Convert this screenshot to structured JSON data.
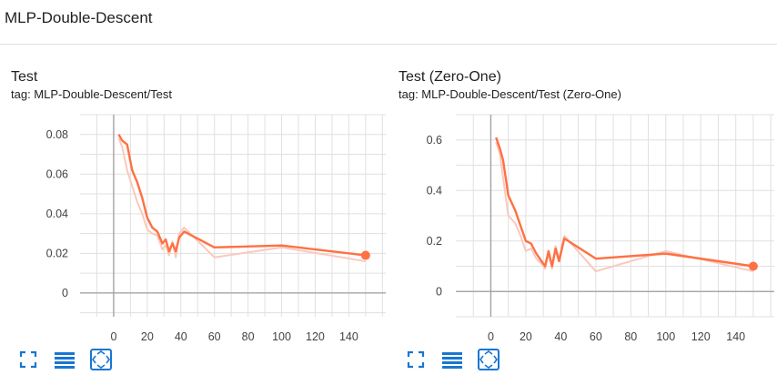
{
  "section": {
    "title": "MLP-Double-Descent"
  },
  "cards": [
    {
      "title": "Test",
      "tag": "tag: MLP-Double-Descent/Test",
      "toolbar": {
        "expand": "expand-icon",
        "data": "data-table-icon",
        "fit": "fit-domain-icon"
      }
    },
    {
      "title": "Test (Zero-One)",
      "tag": "tag: MLP-Double-Descent/Test (Zero-One)",
      "toolbar": {
        "expand": "expand-icon",
        "data": "data-table-icon",
        "fit": "fit-domain-icon"
      }
    }
  ],
  "colors": {
    "line": "#ff7043",
    "raw": "#f9c9bc",
    "grid": "#e0e0e0",
    "axis": "#9e9e9e"
  },
  "chart_data": [
    {
      "type": "line",
      "title": "Test",
      "xlim": [
        -20,
        162
      ],
      "ylim": [
        -0.012,
        0.09
      ],
      "xticks": [
        0,
        20,
        40,
        60,
        80,
        100,
        120,
        140
      ],
      "yticks": [
        0,
        0.02,
        0.04,
        0.06,
        0.08
      ],
      "ytick_labels": [
        "0",
        "0.02",
        "0.04",
        "0.06",
        "0.08"
      ],
      "series": [
        {
          "name": "smoothed",
          "x": [
            3,
            5,
            8,
            11,
            14,
            17,
            20,
            23,
            26,
            29,
            31,
            33,
            35,
            37,
            39,
            42,
            60,
            100,
            150
          ],
          "y": [
            0.08,
            0.077,
            0.075,
            0.062,
            0.056,
            0.048,
            0.038,
            0.033,
            0.031,
            0.025,
            0.027,
            0.021,
            0.025,
            0.021,
            0.028,
            0.031,
            0.023,
            0.024,
            0.019
          ]
        },
        {
          "name": "raw",
          "x": [
            3,
            5,
            8,
            11,
            14,
            17,
            20,
            23,
            26,
            29,
            31,
            33,
            35,
            37,
            39,
            42,
            60,
            100,
            150
          ],
          "y": [
            0.078,
            0.074,
            0.062,
            0.054,
            0.046,
            0.04,
            0.032,
            0.03,
            0.029,
            0.022,
            0.024,
            0.019,
            0.026,
            0.018,
            0.03,
            0.033,
            0.018,
            0.023,
            0.016
          ]
        }
      ],
      "last_point": {
        "x": 150,
        "y": 0.019
      }
    },
    {
      "type": "line",
      "title": "Test (Zero-One)",
      "xlim": [
        -20,
        162
      ],
      "ylim": [
        -0.1,
        0.7
      ],
      "xticks": [
        0,
        20,
        40,
        60,
        80,
        100,
        120,
        140
      ],
      "yticks": [
        0,
        0.2,
        0.4,
        0.6
      ],
      "ytick_labels": [
        "0",
        "0.2",
        "0.4",
        "0.6"
      ],
      "series": [
        {
          "name": "smoothed",
          "x": [
            3,
            5,
            7,
            10,
            14,
            17,
            20,
            23,
            26,
            29,
            31,
            33,
            35,
            37,
            39,
            42,
            60,
            100,
            150
          ],
          "y": [
            0.61,
            0.57,
            0.52,
            0.38,
            0.32,
            0.26,
            0.2,
            0.19,
            0.15,
            0.12,
            0.1,
            0.16,
            0.1,
            0.17,
            0.12,
            0.21,
            0.13,
            0.15,
            0.1
          ]
        },
        {
          "name": "raw",
          "x": [
            3,
            5,
            7,
            10,
            14,
            17,
            20,
            23,
            26,
            29,
            31,
            33,
            35,
            37,
            39,
            42,
            60,
            100,
            150
          ],
          "y": [
            0.59,
            0.55,
            0.45,
            0.3,
            0.27,
            0.22,
            0.16,
            0.17,
            0.13,
            0.11,
            0.09,
            0.15,
            0.09,
            0.18,
            0.13,
            0.22,
            0.08,
            0.16,
            0.08
          ]
        }
      ],
      "last_point": {
        "x": 150,
        "y": 0.1
      }
    }
  ]
}
